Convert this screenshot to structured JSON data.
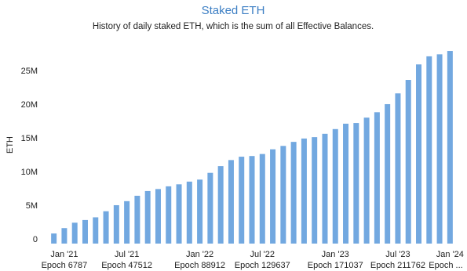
{
  "chart_data": {
    "type": "bar",
    "title": "Staked ETH",
    "subtitle": "History of daily staked ETH, which is the sum of all Effective Balances.",
    "y_label": "ETH",
    "color": "#72a8e0",
    "categories": [
      null,
      "Jan '21",
      null,
      null,
      null,
      null,
      null,
      "Jul '21",
      null,
      null,
      null,
      null,
      null,
      null,
      "Jan '22",
      null,
      null,
      null,
      null,
      null,
      "Jul '22",
      null,
      null,
      null,
      null,
      null,
      null,
      "Jan '23",
      null,
      null,
      null,
      null,
      null,
      "Jul '23",
      null,
      null,
      null,
      null,
      "Jan '24"
    ],
    "epoch_labels": [
      null,
      "Epoch 6787",
      null,
      null,
      null,
      null,
      null,
      "Epoch 47512",
      null,
      null,
      null,
      null,
      null,
      null,
      "Epoch 88912",
      null,
      null,
      null,
      null,
      null,
      "Epoch 129637",
      null,
      null,
      null,
      null,
      null,
      null,
      "Epoch 171037",
      null,
      null,
      null,
      null,
      null,
      "Epoch 211762",
      null,
      null,
      null,
      null,
      "Epoch ..."
    ],
    "values": [
      1500000,
      2300000,
      3100000,
      3500000,
      3900000,
      4800000,
      5700000,
      6300000,
      7100000,
      7800000,
      8100000,
      8500000,
      8800000,
      9200000,
      9500000,
      10500000,
      11500000,
      12400000,
      12900000,
      13000000,
      13300000,
      14000000,
      14500000,
      15100000,
      15600000,
      15800000,
      16300000,
      17000000,
      17800000,
      17900000,
      18700000,
      19500000,
      20700000,
      22300000,
      24300000,
      26600000,
      27800000,
      28100000,
      28600000
    ],
    "ylim": [
      0,
      29000000
    ],
    "yticks": [
      0,
      {
        "value": 5000000,
        "label": "5M"
      },
      {
        "value": 10000000,
        "label": "10M"
      },
      {
        "value": 15000000,
        "label": "15M"
      },
      {
        "value": 20000000,
        "label": "20M"
      },
      {
        "value": 25000000,
        "label": "25M"
      }
    ],
    "grid": false
  }
}
